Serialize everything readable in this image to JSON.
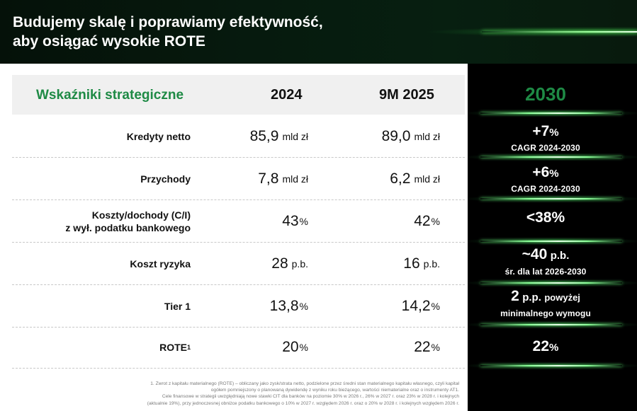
{
  "header": {
    "title": "Budujemy skalę i poprawiamy efektywność,\naby osiągać wysokie ROTE"
  },
  "table": {
    "header_label": "Wskaźniki strategiczne",
    "col_2024": "2024",
    "col_9m2025": "9M 2025",
    "col_2030": "2030",
    "rows": [
      {
        "label": "Kredyty netto",
        "v2024": "85,9",
        "u2024": "mld zł",
        "v9m": "89,0",
        "u9m": "mld zł",
        "t_main": "+7",
        "t_unit": "%",
        "t_sub": "CAGR 2024-2030"
      },
      {
        "label": "Przychody",
        "v2024": "7,8",
        "u2024": "mld zł",
        "v9m": "6,2",
        "u9m": "mld zł",
        "t_main": "+6",
        "t_unit": "%",
        "t_sub": "CAGR 2024-2030"
      },
      {
        "label": "Koszty/dochody (C/I)\nz wył. podatku bankowego",
        "v2024": "43",
        "u2024": "%",
        "v9m": "42",
        "u9m": "%",
        "t_main": "<38%",
        "t_unit": "",
        "t_sub": ""
      },
      {
        "label": "Koszt ryzyka",
        "v2024": "28",
        "u2024": "p.b.",
        "v9m": "16",
        "u9m": "p.b.",
        "t_main": "~40",
        "t_unit": "p.b.",
        "t_sub": "śr. dla lat 2026-2030"
      },
      {
        "label": "Tier 1",
        "v2024": "13,8",
        "u2024": "%",
        "v9m": "14,2",
        "u9m": "%",
        "t_main": "2",
        "t_unit": "p.p.",
        "t_note": "powyżej",
        "t_sub": "minimalnego wymogu"
      },
      {
        "label": "ROTE",
        "label_sup": "1",
        "v2024": "20",
        "u2024": "%",
        "v9m": "22",
        "u9m": "%",
        "t_main": "22",
        "t_unit": "%",
        "t_sub": ""
      }
    ]
  },
  "footnotes": {
    "line1": "1. Zwrot z kapitału materialnego (ROTE) – obliczany jako zysk/strata netto, podzielone przez średni stan materialnego kapitału własnego, czyli kapitał",
    "line2": "ogółem pomniejszony o planowaną dywidendę z wyniku roku bieżącego, wartości niematerialne oraz o instrumenty AT1.",
    "line3": "Cele finansowe w strategii uwzględniają nowe stawki CIT dla banków na poziomie 30% w 2026 r., 26% w 2027 r. oraz 23% w 2028 r. i kolejnych",
    "line4": "(aktualnie 19%), przy jednoczesnej obniżce podatku bankowego o 10% w 2027 r. względem 2026 r. oraz o 20% w 2028 r. i kolejnych względem 2026 r."
  },
  "colors": {
    "accent_green": "#1e8a45",
    "header_bg": "#061a0e",
    "panel_bg": "#000000"
  }
}
